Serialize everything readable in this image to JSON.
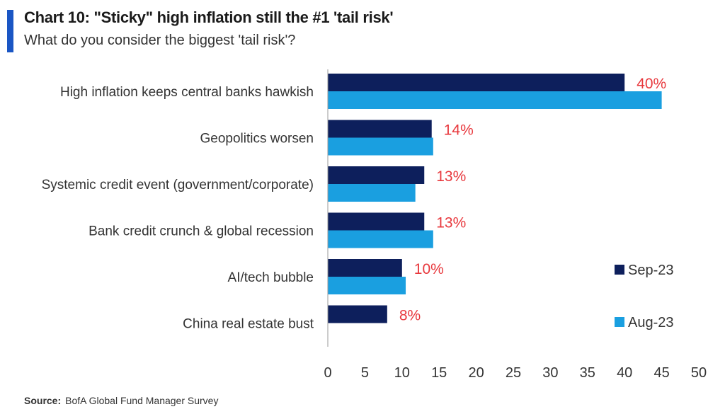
{
  "header": {
    "title": "Chart 10: \"Sticky\" high inflation still the #1 'tail risk'",
    "subtitle": "What do you consider the biggest 'tail risk'?",
    "accent_color": "#1a56c4"
  },
  "footer": {
    "source_label": "Source:",
    "source_text": "BofA Global Fund Manager Survey"
  },
  "chart_data": {
    "type": "bar",
    "orientation": "horizontal",
    "categories": [
      "High inflation keeps central banks hawkish",
      "Geopolitics worsen",
      "Systemic credit event (government/corporate)",
      "Bank credit crunch & global recession",
      "AI/tech bubble",
      "China real estate bust"
    ],
    "series": [
      {
        "name": "Sep-23",
        "color": "#0d1f5c",
        "values": [
          40,
          14,
          13,
          13,
          10,
          8
        ],
        "data_labels": [
          "40%",
          "14%",
          "13%",
          "13%",
          "10%",
          "8%"
        ]
      },
      {
        "name": "Aug-23",
        "color": "#1a9fe0",
        "values": [
          45,
          14.2,
          11.8,
          14.2,
          10.5,
          null
        ]
      }
    ],
    "data_label_color": "#e8383d",
    "xlim": [
      0,
      50
    ],
    "xticks": [
      "0",
      "5",
      "10",
      "15",
      "20",
      "25",
      "30",
      "35",
      "40",
      "45",
      "50"
    ],
    "grid": false,
    "legend_position": "right"
  }
}
